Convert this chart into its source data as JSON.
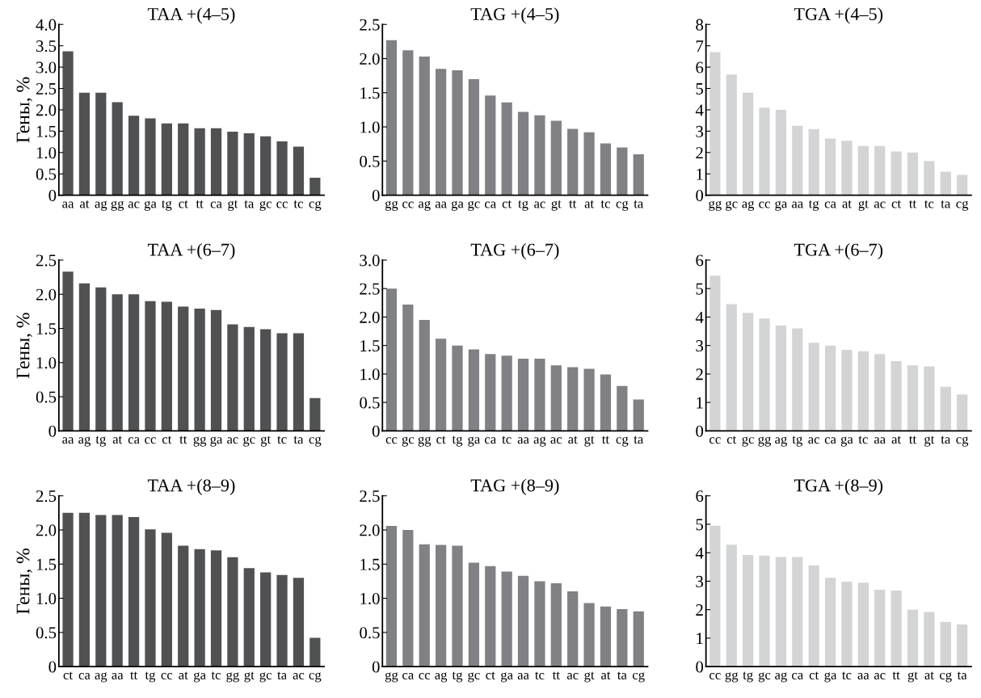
{
  "chart_data": [
    {
      "type": "bar",
      "title": "TAA +(4–5)",
      "ylabel": "Гены, %",
      "categories": [
        "aa",
        "at",
        "ag",
        "gg",
        "ac",
        "ga",
        "tg",
        "ct",
        "tt",
        "ca",
        "gt",
        "ta",
        "gc",
        "cc",
        "tc",
        "cg"
      ],
      "values": [
        3.37,
        2.4,
        2.4,
        2.18,
        1.86,
        1.8,
        1.68,
        1.68,
        1.57,
        1.57,
        1.49,
        1.45,
        1.38,
        1.26,
        1.14,
        0.41
      ],
      "color": "#505153",
      "ylim": [
        0,
        4
      ],
      "yticks": [
        0,
        0.5,
        {
          "value": 1,
          "label": "1.0"
        },
        1.5,
        {
          "value": 2,
          "label": "2.0"
        },
        2.5,
        {
          "value": 3,
          "label": "3.0"
        },
        3.5,
        {
          "value": 4,
          "label": "4.0"
        }
      ],
      "grid": false
    },
    {
      "type": "bar",
      "title": "TAG +(4–5)",
      "categories": [
        "gg",
        "cc",
        "ag",
        "aa",
        "ga",
        "gc",
        "ca",
        "ct",
        "tg",
        "ac",
        "gt",
        "tt",
        "at",
        "tc",
        "cg",
        "ta"
      ],
      "values": [
        2.27,
        2.12,
        2.03,
        1.85,
        1.83,
        1.7,
        1.46,
        1.36,
        1.22,
        1.17,
        1.09,
        0.97,
        0.92,
        0.76,
        0.7,
        0.6
      ],
      "color": "#808185",
      "ylim": [
        0,
        2.5
      ],
      "yticks": [
        0,
        0.5,
        {
          "value": 1,
          "label": "1.0"
        },
        1.5,
        {
          "value": 2,
          "label": "2.0"
        },
        2.5
      ],
      "grid": false
    },
    {
      "type": "bar",
      "title": "TGA +(4–5)",
      "categories": [
        "gg",
        "gc",
        "ag",
        "cc",
        "ga",
        "aa",
        "tg",
        "ca",
        "at",
        "gt",
        "ac",
        "ct",
        "tt",
        "tc",
        "ta",
        "cg"
      ],
      "values": [
        6.7,
        5.65,
        4.8,
        4.1,
        4.0,
        3.25,
        3.1,
        2.65,
        2.55,
        2.3,
        2.3,
        2.05,
        2.0,
        1.6,
        1.1,
        0.95
      ],
      "color": "#d3d4d6",
      "ylim": [
        0,
        8
      ],
      "yticks": [
        0,
        1,
        2,
        3,
        4,
        5,
        6,
        7,
        8
      ],
      "grid": false
    },
    {
      "type": "bar",
      "title": "TAA +(6–7)",
      "ylabel": "Гены, %",
      "categories": [
        "aa",
        "ag",
        "tg",
        "at",
        "ca",
        "cc",
        "ct",
        "tt",
        "gg",
        "ga",
        "ac",
        "gc",
        "gt",
        "tc",
        "ta",
        "cg"
      ],
      "values": [
        2.33,
        2.16,
        2.1,
        2.0,
        2.0,
        1.9,
        1.89,
        1.82,
        1.79,
        1.77,
        1.56,
        1.52,
        1.49,
        1.43,
        1.43,
        0.48
      ],
      "color": "#505153",
      "ylim": [
        0,
        2.5
      ],
      "yticks": [
        0,
        0.5,
        {
          "value": 1,
          "label": "1.0"
        },
        1.5,
        {
          "value": 2,
          "label": "2.0"
        },
        2.5
      ],
      "grid": false
    },
    {
      "type": "bar",
      "title": "TAG +(6–7)",
      "categories": [
        "cc",
        "gc",
        "gg",
        "ct",
        "tg",
        "ga",
        "ca",
        "tc",
        "aa",
        "ag",
        "ac",
        "at",
        "gt",
        "tt",
        "cg",
        "ta"
      ],
      "values": [
        2.5,
        2.22,
        1.95,
        1.62,
        1.5,
        1.43,
        1.35,
        1.32,
        1.27,
        1.27,
        1.15,
        1.12,
        1.09,
        0.99,
        0.79,
        0.55
      ],
      "color": "#808185",
      "ylim": [
        0,
        3
      ],
      "yticks": [
        0,
        0.5,
        {
          "value": 1,
          "label": "1.0"
        },
        1.5,
        {
          "value": 2,
          "label": "2.0"
        },
        2.5,
        {
          "value": 3,
          "label": "3.0"
        }
      ],
      "grid": false
    },
    {
      "type": "bar",
      "title": "TGA +(6–7)",
      "categories": [
        "cc",
        "ct",
        "gc",
        "gg",
        "ag",
        "tg",
        "ac",
        "ca",
        "ga",
        "tc",
        "aa",
        "at",
        "tt",
        "gt",
        "ta",
        "cg"
      ],
      "values": [
        5.45,
        4.45,
        4.15,
        3.95,
        3.7,
        3.6,
        3.1,
        3.0,
        2.85,
        2.8,
        2.7,
        2.45,
        2.3,
        2.27,
        1.55,
        1.28
      ],
      "color": "#d3d4d6",
      "ylim": [
        0,
        6
      ],
      "yticks": [
        0,
        1,
        2,
        3,
        4,
        5,
        6
      ],
      "grid": false
    },
    {
      "type": "bar",
      "title": "TAA +(8–9)",
      "ylabel": "Гены, %",
      "categories": [
        "ct",
        "ca",
        "ag",
        "aa",
        "tt",
        "tg",
        "cc",
        "at",
        "ga",
        "tc",
        "gg",
        "gt",
        "gc",
        "ta",
        "ac",
        "cg"
      ],
      "values": [
        2.25,
        2.25,
        2.22,
        2.22,
        2.19,
        2.01,
        1.96,
        1.77,
        1.72,
        1.7,
        1.6,
        1.44,
        1.38,
        1.34,
        1.3,
        0.42
      ],
      "color": "#505153",
      "ylim": [
        0,
        2.5
      ],
      "yticks": [
        0,
        0.5,
        {
          "value": 1,
          "label": "1.0"
        },
        1.5,
        {
          "value": 2,
          "label": "2.0"
        },
        2.5
      ],
      "grid": false
    },
    {
      "type": "bar",
      "title": "TAG +(8–9)",
      "categories": [
        "gg",
        "ca",
        "cc",
        "ag",
        "tg",
        "gc",
        "ct",
        "ga",
        "aa",
        "tc",
        "tt",
        "ac",
        "gt",
        "at",
        "ta",
        "cg"
      ],
      "values": [
        2.06,
        2.0,
        1.79,
        1.78,
        1.77,
        1.52,
        1.47,
        1.39,
        1.33,
        1.25,
        1.22,
        1.1,
        0.93,
        0.88,
        0.84,
        0.81
      ],
      "color": "#808185",
      "ylim": [
        0,
        2.5
      ],
      "yticks": [
        0,
        0.5,
        {
          "value": 1,
          "label": "1.0"
        },
        1.5,
        {
          "value": 2,
          "label": "2.0"
        },
        2.5
      ],
      "grid": false
    },
    {
      "type": "bar",
      "title": "TGA +(8–9)",
      "categories": [
        "cc",
        "gg",
        "tg",
        "gc",
        "ag",
        "ca",
        "ct",
        "ga",
        "tc",
        "aa",
        "ac",
        "tt",
        "gt",
        "at",
        "cg",
        "ta"
      ],
      "values": [
        4.95,
        4.28,
        3.92,
        3.9,
        3.85,
        3.85,
        3.55,
        3.12,
        2.98,
        2.95,
        2.7,
        2.67,
        2.0,
        1.92,
        1.57,
        1.48
      ],
      "color": "#d3d4d6",
      "ylim": [
        0,
        6
      ],
      "yticks": [
        0,
        1,
        2,
        3,
        4,
        5,
        6
      ],
      "grid": false
    }
  ]
}
